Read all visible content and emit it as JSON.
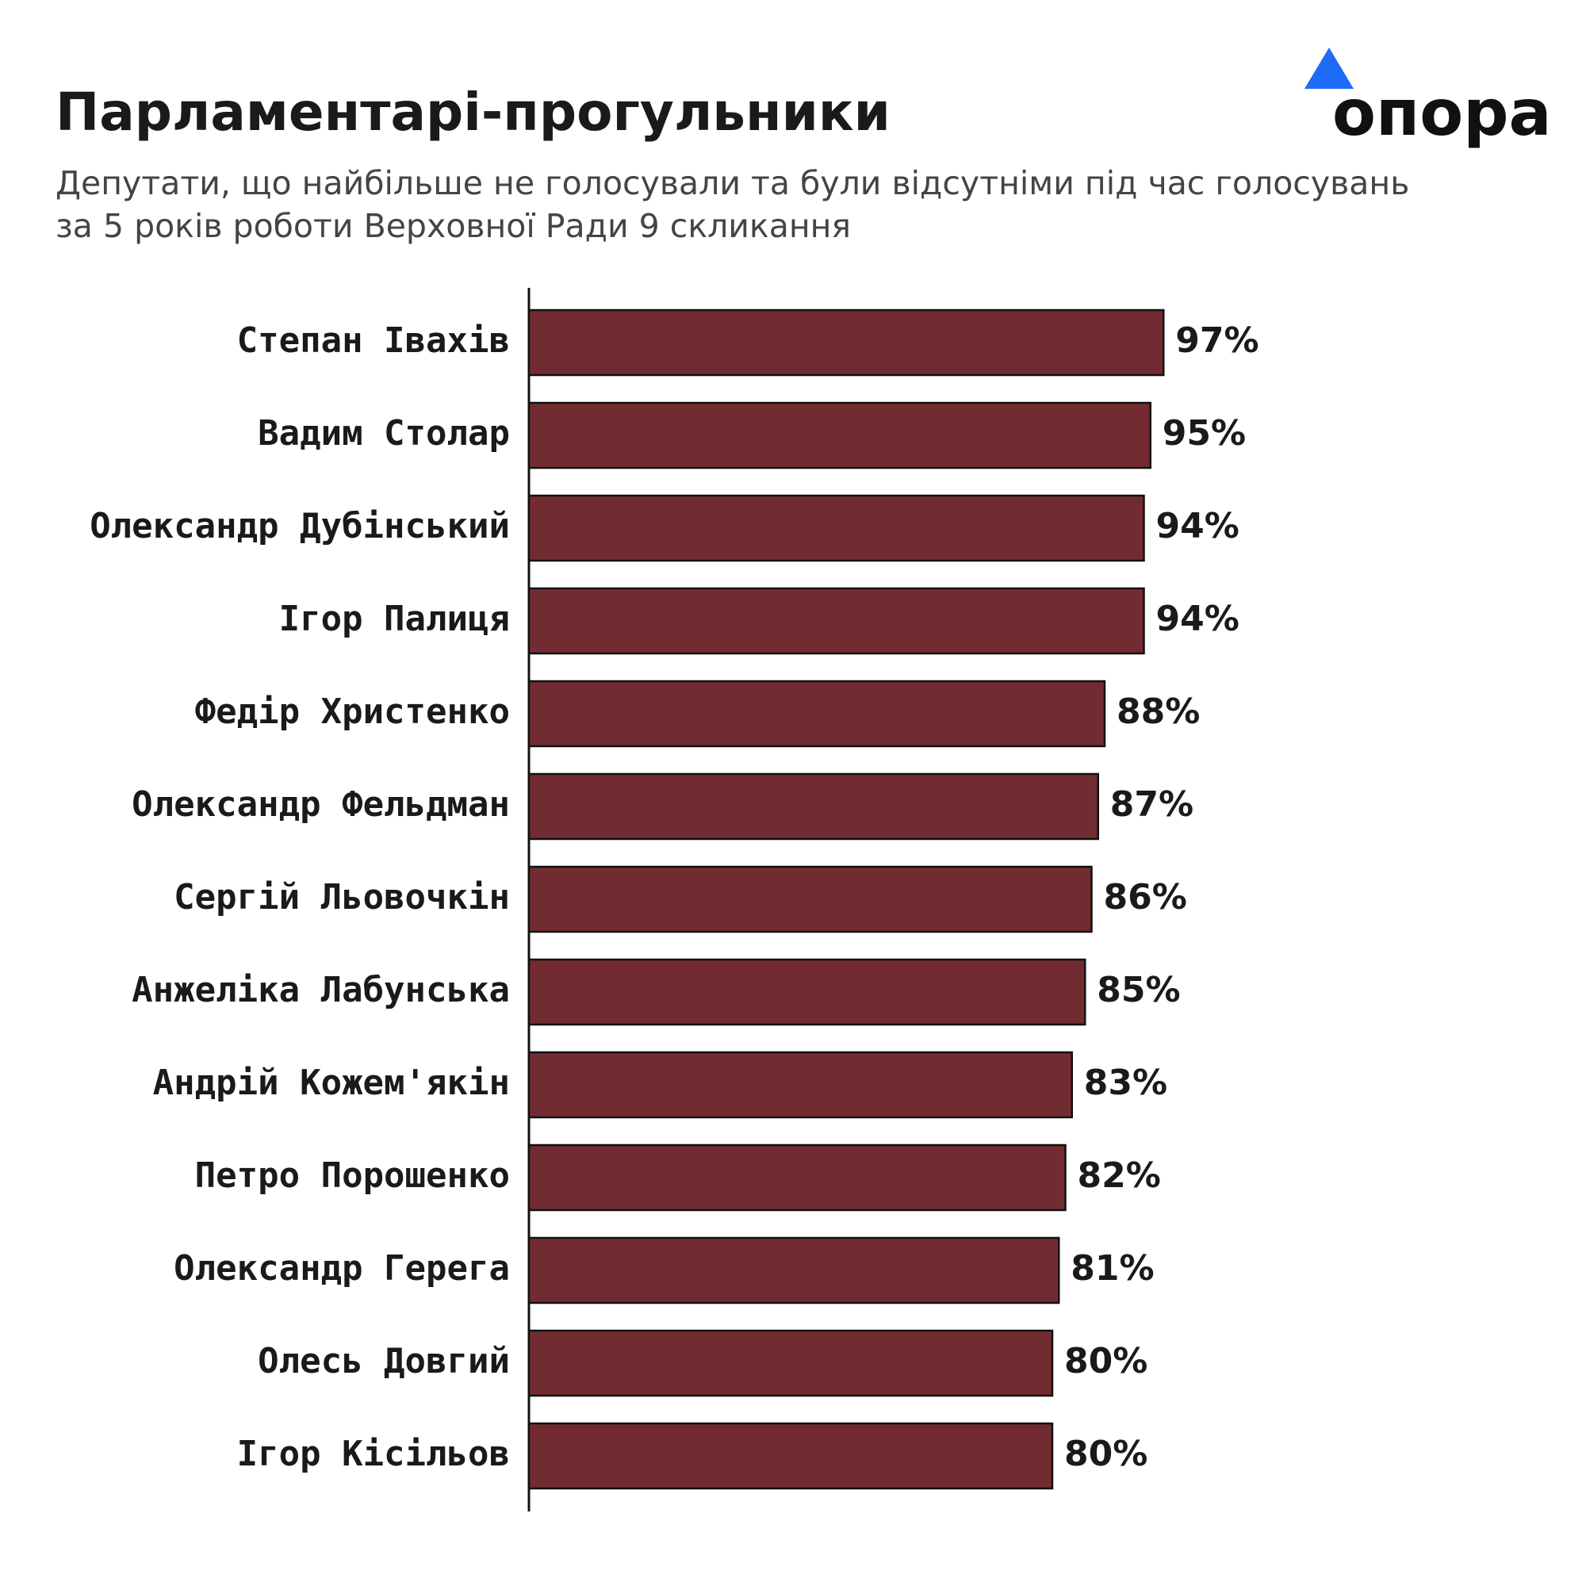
{
  "logo": "опора",
  "chart_data": {
    "type": "barh",
    "title": "Парламентарі-прогульники",
    "subtitle": [
      "Депутати, що найбільше не голосували та були відсутніми під час голосувань",
      "за 5 років роботи Верховної Ради 9 скликання"
    ],
    "categories": [
      "Степан Івахів",
      "Вадим Столар",
      "Олександр Дубінський",
      "Ігор Палиця",
      "Федір Христенко",
      "Олександр Фельдман",
      "Сергій Льовочкін",
      "Анжеліка Лабунська",
      "Андрій Кожем'якін",
      "Петро Порошенко",
      "Олександр Герега",
      "Олесь Довгий",
      "Ігор Кісільов"
    ],
    "values": [
      97,
      95,
      94,
      94,
      88,
      87,
      86,
      85,
      83,
      82,
      81,
      80,
      80
    ],
    "value_labels": [
      "97%",
      "95%",
      "94%",
      "94%",
      "88%",
      "87%",
      "86%",
      "85%",
      "83%",
      "82%",
      "81%",
      "80%",
      "80%"
    ],
    "color": "#722c31"
  }
}
